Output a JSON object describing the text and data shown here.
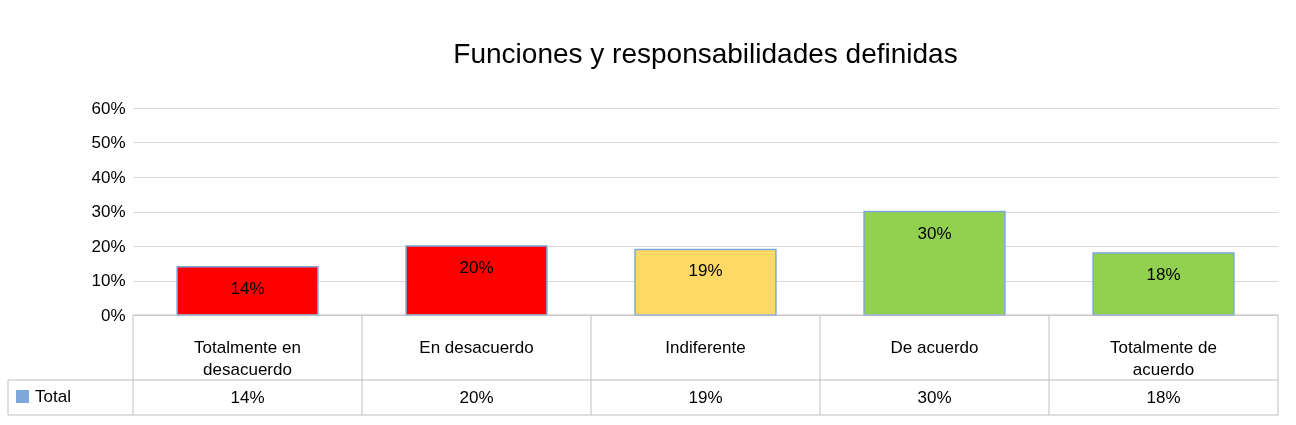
{
  "chart_data": {
    "type": "bar",
    "title": "Funciones y responsabilidades definidas",
    "categories": [
      "Totalmente en desacuerdo",
      "En desacuerdo",
      "Indiferente",
      "De acuerdo",
      "Totalmente de acuerdo"
    ],
    "series": [
      {
        "name": "Total",
        "color": "#7da7d9",
        "colors": [
          "#ff0000",
          "#ff0000",
          "#ffd966",
          "#92d050",
          "#92d050"
        ],
        "values": [
          14,
          20,
          19,
          30,
          18
        ],
        "value_labels": [
          "14%",
          "20%",
          "19%",
          "30%",
          "18%"
        ]
      }
    ],
    "ylim": [
      0,
      60
    ],
    "yticks": [
      {
        "value": 0,
        "label": "0%"
      },
      {
        "value": 10,
        "label": "10%"
      },
      {
        "value": 20,
        "label": "20%"
      },
      {
        "value": 30,
        "label": "30%"
      },
      {
        "value": 40,
        "label": "40%"
      },
      {
        "value": 50,
        "label": "50%"
      },
      {
        "value": 60,
        "label": "60%"
      }
    ],
    "grid": "y",
    "legend": "bottom left"
  }
}
